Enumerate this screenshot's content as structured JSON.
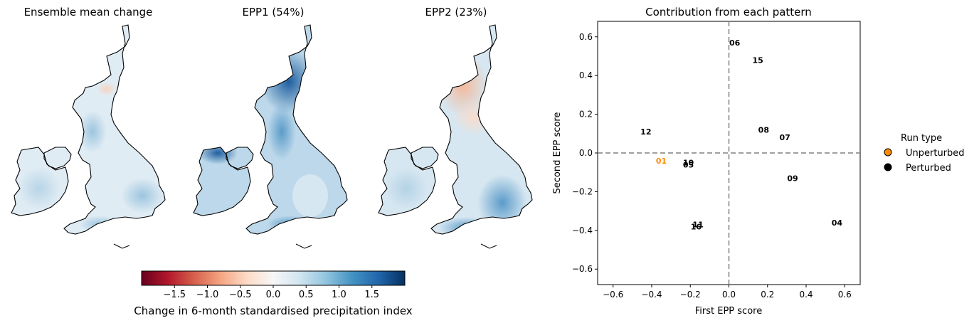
{
  "maps": [
    {
      "title": "Ensemble mean change",
      "scheme": "mean"
    },
    {
      "title": "EPP1 (54%)",
      "scheme": "epp1"
    },
    {
      "title": "EPP2 (23%)",
      "scheme": "epp2"
    }
  ],
  "colorbar": {
    "label": "Change in 6-month standardised precipitation index",
    "ticks": [
      "−1.5",
      "−1.0",
      "−0.5",
      "0.0",
      "0.5",
      "1.0",
      "1.5"
    ],
    "tick_values": [
      -1.5,
      -1.0,
      -0.5,
      0.0,
      0.5,
      1.0,
      1.5
    ],
    "range": [
      -2,
      2
    ],
    "colormap": "RdBu"
  },
  "scatter": {
    "title": "Contribution from each pattern",
    "xlabel": "First EPP score",
    "ylabel": "Second EPP score",
    "x_ticks": [
      "−0.6",
      "−0.4",
      "−0.2",
      "0.0",
      "0.2",
      "0.4",
      "0.6"
    ],
    "y_ticks": [
      "−0.6",
      "−0.4",
      "−0.2",
      "0.0",
      "0.2",
      "0.4",
      "0.6"
    ],
    "legend": {
      "title": "Run type",
      "items": [
        {
          "label": "Unperturbed",
          "color": "#ff8c00"
        },
        {
          "label": "Perturbed",
          "color": "#000000"
        }
      ]
    }
  },
  "chart_data": [
    {
      "type": "heatmap",
      "title": "Ensemble mean change",
      "colorbar_label": "Change in 6-month standardised precipitation index",
      "vrange": [
        -2,
        2
      ]
    },
    {
      "type": "heatmap",
      "title": "EPP1 (54%)",
      "colorbar_label": "Change in 6-month standardised precipitation index",
      "vrange": [
        -2,
        2
      ]
    },
    {
      "type": "heatmap",
      "title": "EPP2 (23%)",
      "colorbar_label": "Change in 6-month standardised precipitation index",
      "vrange": [
        -2,
        2
      ]
    },
    {
      "type": "scatter",
      "title": "Contribution from each pattern",
      "xlabel": "First EPP score",
      "ylabel": "Second EPP score",
      "xlim": [
        -0.68,
        0.68
      ],
      "ylim": [
        -0.68,
        0.68
      ],
      "reference_lines": {
        "x": 0.0,
        "y": 0.0,
        "style": "dashed",
        "color": "#808080"
      },
      "legend_title": "Run type",
      "legend_placement": "right",
      "series": [
        {
          "name": "Unperturbed",
          "color": "#ff8c00",
          "points": [
            {
              "label": "01",
              "x": -0.35,
              "y": -0.04
            }
          ]
        },
        {
          "name": "Perturbed",
          "color": "#000000",
          "points": [
            {
              "label": "04",
              "x": 0.56,
              "y": -0.36
            },
            {
              "label": "05",
              "x": -0.21,
              "y": -0.06
            },
            {
              "label": "06",
              "x": 0.03,
              "y": 0.57
            },
            {
              "label": "07",
              "x": 0.29,
              "y": 0.08
            },
            {
              "label": "08",
              "x": 0.18,
              "y": 0.12
            },
            {
              "label": "09",
              "x": 0.33,
              "y": -0.13
            },
            {
              "label": "10",
              "x": -0.21,
              "y": -0.05
            },
            {
              "label": "11",
              "x": -0.16,
              "y": -0.37
            },
            {
              "label": "12",
              "x": -0.43,
              "y": 0.11
            },
            {
              "label": "15",
              "x": 0.15,
              "y": 0.48
            },
            {
              "label": "16",
              "x": -0.17,
              "y": -0.38
            }
          ]
        }
      ]
    }
  ]
}
